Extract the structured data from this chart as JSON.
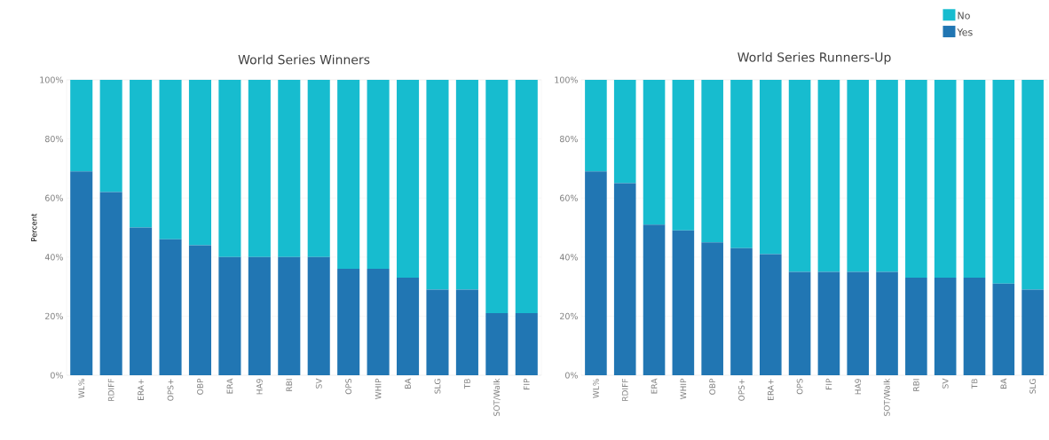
{
  "chart_data": [
    {
      "type": "bar",
      "title": "World Series Winners",
      "ylabel": "Percent",
      "stacked": true,
      "grid": "y",
      "legend": false,
      "categories": [
        "WL%",
        "RDIFF",
        "ERA+",
        "OPS+",
        "OBP",
        "ERA",
        "HA9",
        "RBI",
        "SV",
        "OPS",
        "WHIP",
        "BA",
        "SLG",
        "TB",
        "SOT/Walk",
        "FIP"
      ],
      "ylim": [
        0,
        100
      ],
      "yticks": [
        {
          "value": 0,
          "label": "0%"
        },
        {
          "value": 20,
          "label": "20%"
        },
        {
          "value": 40,
          "label": "40%"
        },
        {
          "value": 60,
          "label": "60%"
        },
        {
          "value": 80,
          "label": "80%"
        },
        {
          "value": 100,
          "label": "100%"
        }
      ],
      "series": [
        {
          "color": "#2176b3",
          "values": [
            69,
            62,
            50,
            46,
            44,
            40,
            40,
            40,
            40,
            36,
            36,
            33,
            29,
            29,
            21,
            21
          ]
        },
        {
          "color": "#17bccf",
          "values": [
            31,
            38,
            50,
            54,
            56,
            60,
            60,
            60,
            60,
            64,
            64,
            67,
            71,
            71,
            79,
            79
          ]
        }
      ]
    },
    {
      "type": "bar",
      "title": "World Series Runners-Up",
      "stacked": true,
      "grid": "y",
      "legend": "top right",
      "categories": [
        "WL%",
        "RDIFF",
        "ERA",
        "WHIP",
        "OBP",
        "OPS+",
        "ERA+",
        "OPS",
        "FIP",
        "HA9",
        "SOT/Walk",
        "RBI",
        "SV",
        "TB",
        "BA",
        "SLG"
      ],
      "ylim": [
        0,
        100
      ],
      "yticks": [
        {
          "value": 0,
          "label": "0%"
        },
        {
          "value": 20,
          "label": "20%"
        },
        {
          "value": 40,
          "label": "40%"
        },
        {
          "value": 60,
          "label": "60%"
        },
        {
          "value": 80,
          "label": "80%"
        },
        {
          "value": 100,
          "label": "100%"
        }
      ],
      "series": [
        {
          "name": "Yes",
          "color": "#2176b3",
          "values": [
            69,
            65,
            51,
            49,
            45,
            43,
            41,
            35,
            35,
            35,
            35,
            33,
            33,
            33,
            31,
            29
          ]
        },
        {
          "name": "No",
          "color": "#17bccf",
          "values": [
            31,
            35,
            49,
            51,
            55,
            57,
            59,
            65,
            65,
            65,
            65,
            67,
            67,
            67,
            69,
            71
          ]
        }
      ]
    }
  ]
}
